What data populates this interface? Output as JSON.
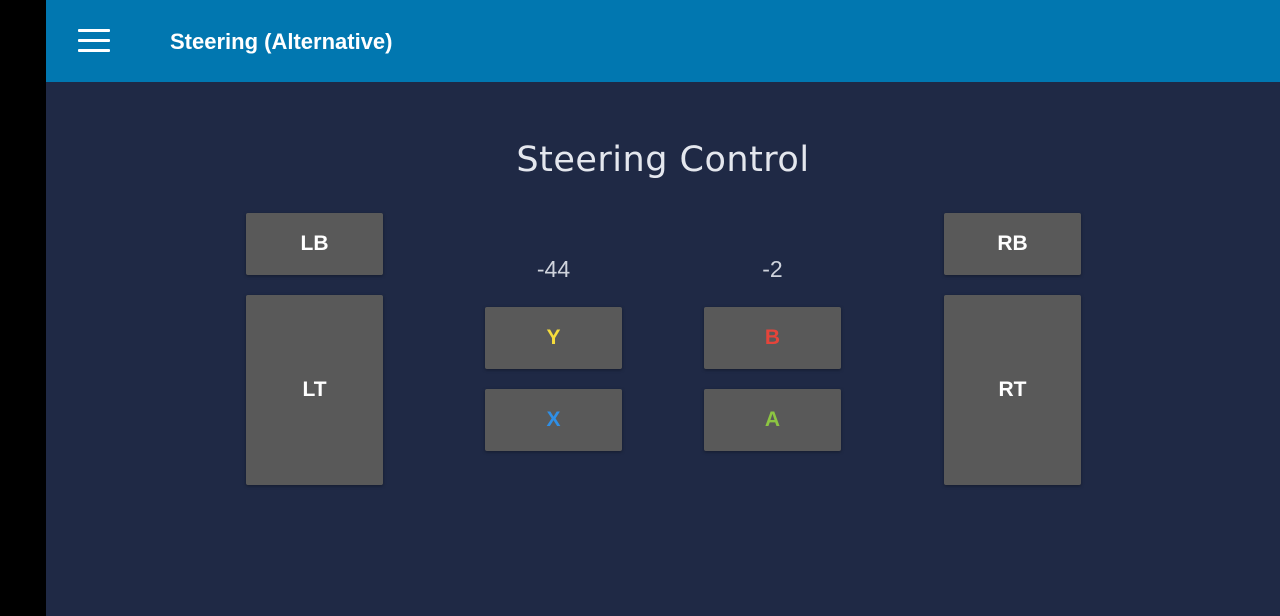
{
  "appbar": {
    "title": "Steering (Alternative)",
    "menu_icon": "hamburger-menu-icon"
  },
  "heading": "Steering Control",
  "readouts": {
    "left": "-44",
    "right": "-2"
  },
  "buttons": {
    "lb": {
      "label": "LB"
    },
    "lt": {
      "label": "LT"
    },
    "rb": {
      "label": "RB"
    },
    "rt": {
      "label": "RT"
    },
    "y": {
      "label": "Y",
      "color": "#f5dc3c"
    },
    "x": {
      "label": "X",
      "color": "#2f8fe6"
    },
    "b": {
      "label": "B",
      "color": "#e5443a"
    },
    "a": {
      "label": "A",
      "color": "#8cc542"
    }
  },
  "colors": {
    "appbar": "#0177b0",
    "background": "#1f2945",
    "button": "#595959"
  }
}
